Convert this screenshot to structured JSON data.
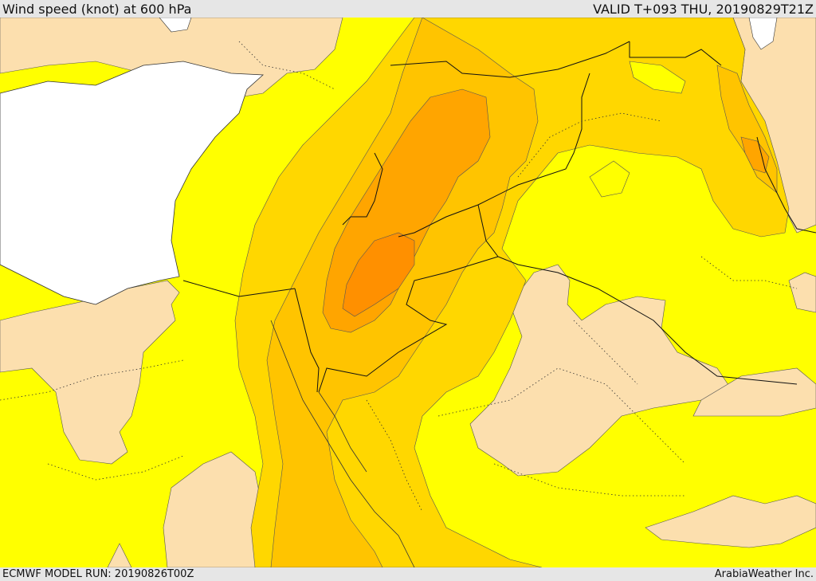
{
  "header": {
    "title": "Wind speed (knot) at 600 hPa",
    "valid": "VALID T+093 THU, 20190829T21Z"
  },
  "footer": {
    "model_run": "ECMWF MODEL RUN: 20190826T00Z",
    "credit": "ArabiaWeather Inc."
  },
  "colors": {
    "band_lightest": "#fcdfae",
    "band_yellow": "#ffff00",
    "band_gold": "#ffd700",
    "band_amber": "#ffc400",
    "band_orange": "#ffa500",
    "band_dark_orange": "#ff9000",
    "sea": "#ffffff"
  }
}
